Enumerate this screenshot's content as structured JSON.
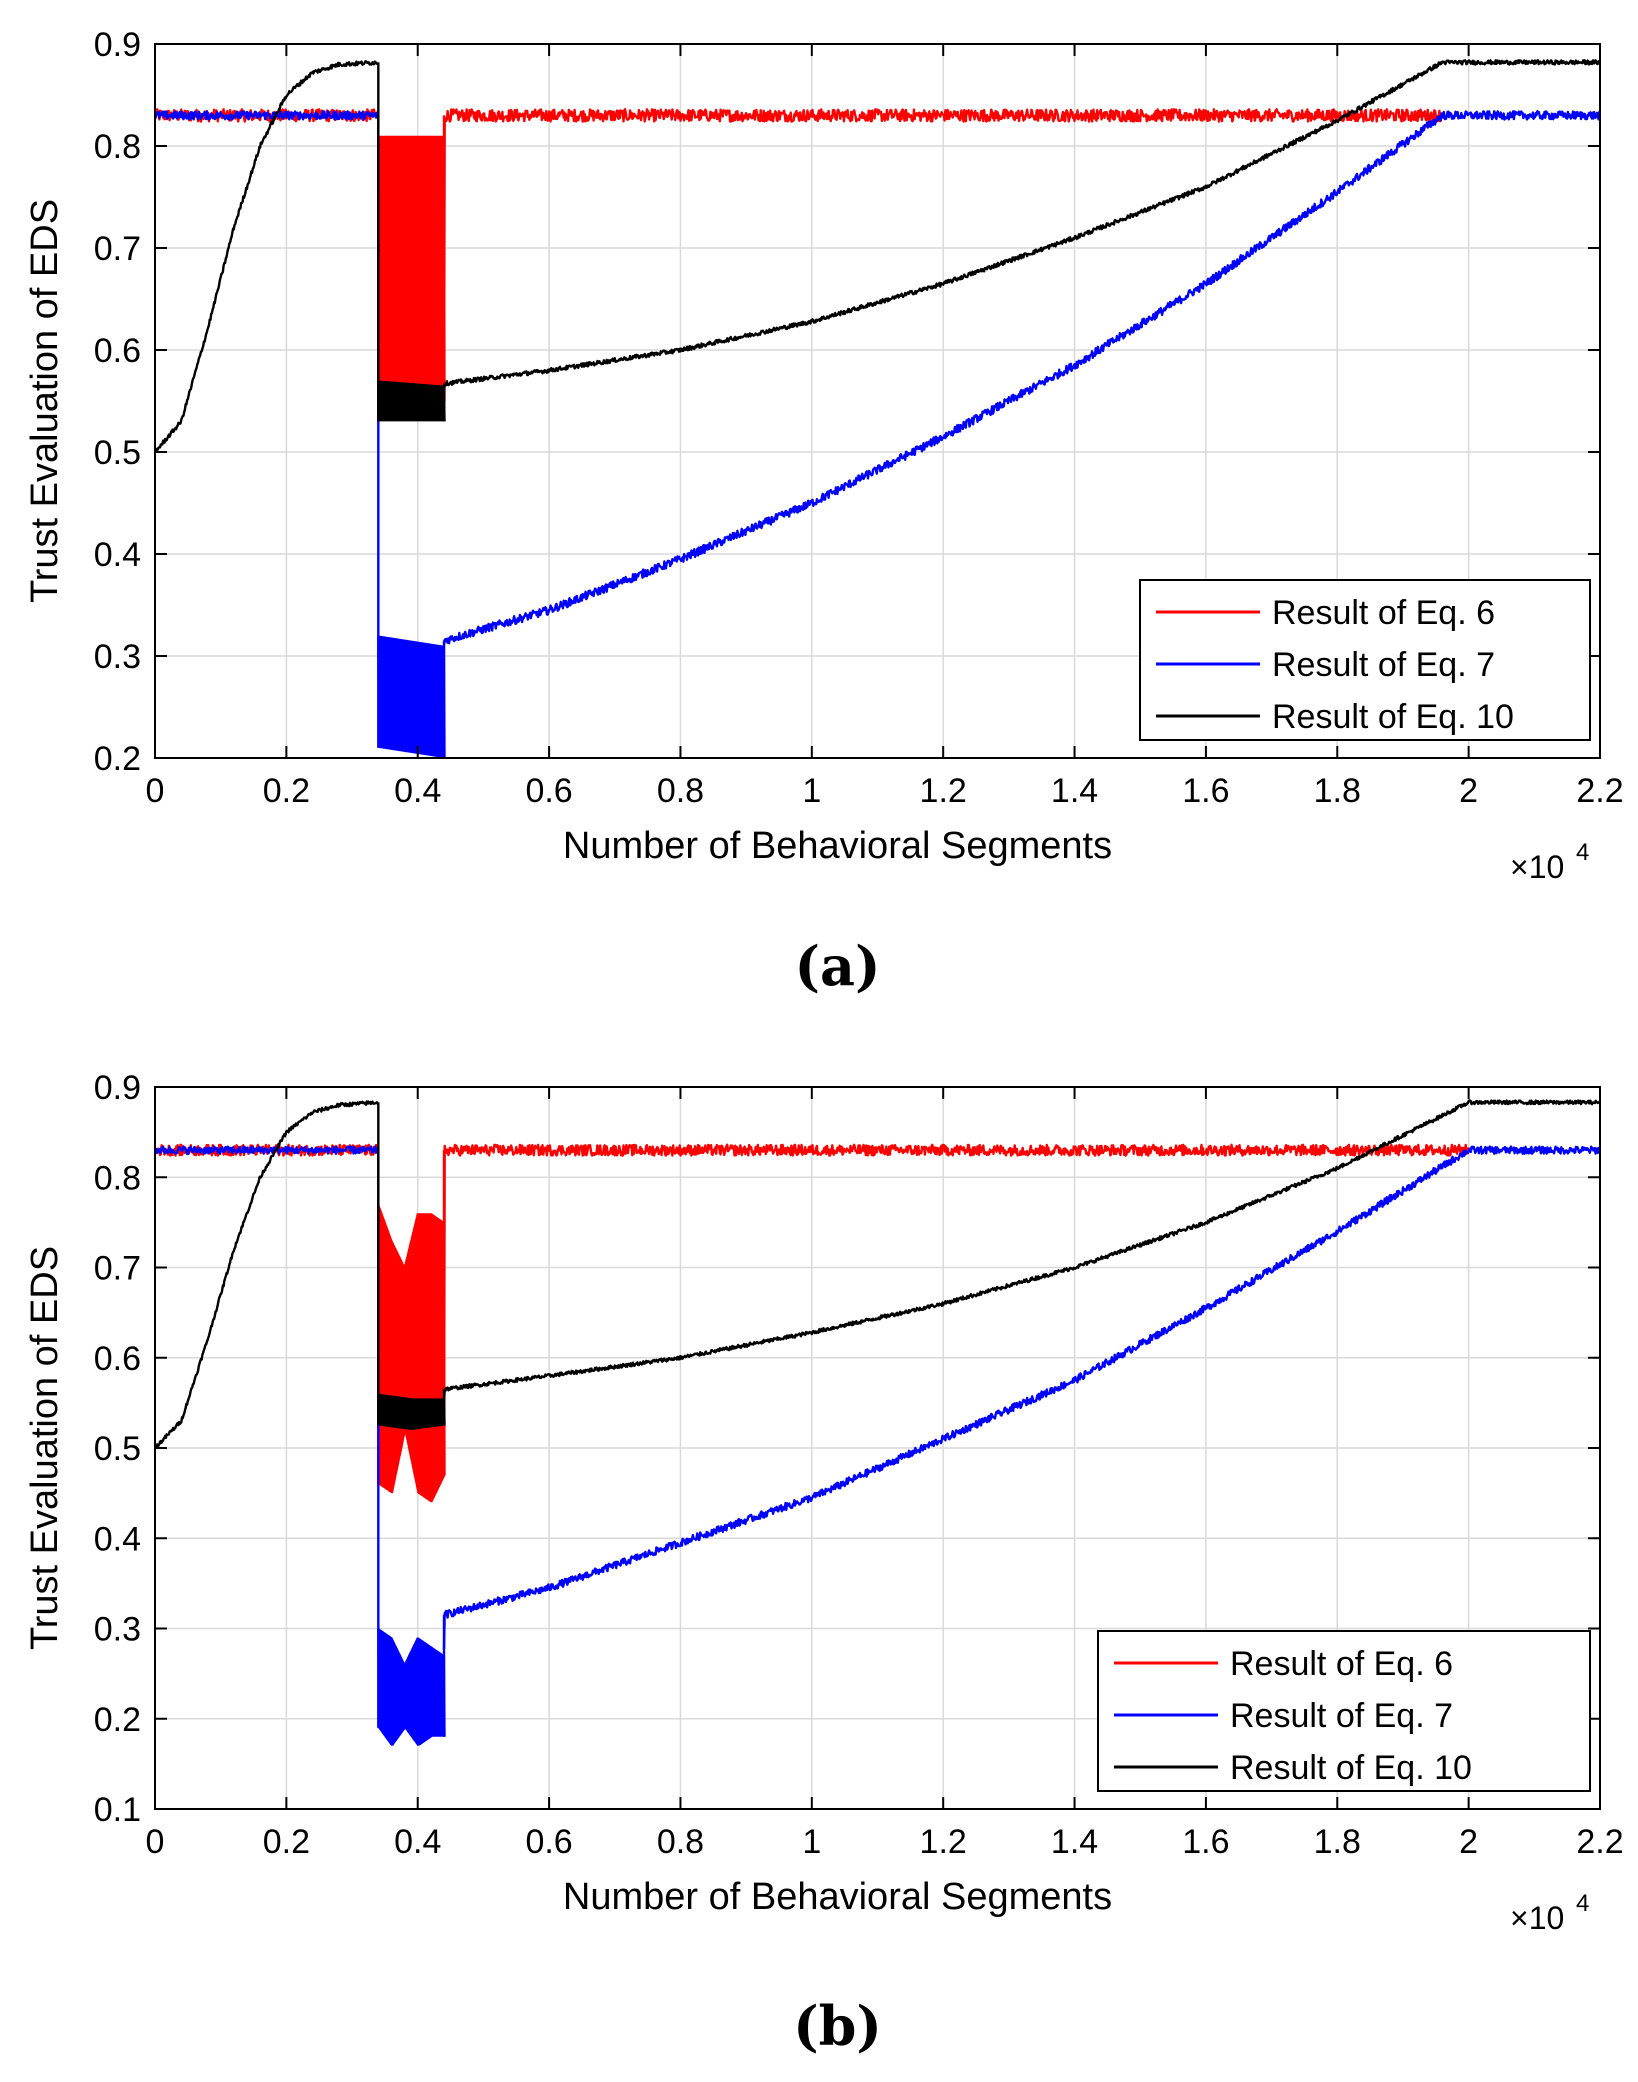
{
  "colors": {
    "eq6": "#ff0000",
    "eq7": "#0000ff",
    "eq10": "#000000",
    "grid": "#d9d9d9",
    "axis": "#000000"
  },
  "chart_data": [
    {
      "type": "line",
      "panel_label": "(a)",
      "xlabel": "Number of Behavioral Segments",
      "ylabel": "Trust Evaluation of EDS",
      "x_multiplier": "×10",
      "x_multiplier_exp": "4",
      "xlim": [
        0,
        2.2
      ],
      "ylim": [
        0.2,
        0.9
      ],
      "xticks": [
        "0",
        "0.2",
        "0.4",
        "0.6",
        "0.8",
        "1",
        "1.2",
        "1.4",
        "1.6",
        "1.8",
        "2",
        "2.2"
      ],
      "yticks": [
        "0.2",
        "0.3",
        "0.4",
        "0.5",
        "0.6",
        "0.7",
        "0.8",
        "0.9"
      ],
      "grid": true,
      "legend_position": "bottom-right",
      "series": [
        {
          "name": "Result of Eq. 6",
          "color": "#ff0000",
          "x": [
            0,
            0.34,
            0.34,
            0.44,
            0.44,
            1.96
          ],
          "y": [
            0.83,
            0.83,
            0.81,
            0.53,
            0.83,
            0.83
          ],
          "band": [
            [
              0.34,
              0.53,
              0.81
            ],
            [
              0.44,
              0.55,
              0.81
            ]
          ],
          "noise": 0.006
        },
        {
          "name": "Result of Eq. 7",
          "color": "#0000ff",
          "x": [
            0,
            0.34,
            0.34,
            0.35,
            0.44,
            0.44,
            0.6,
            0.8,
            1.0,
            1.2,
            1.4,
            1.6,
            1.8,
            1.96,
            2.2
          ],
          "y": [
            0.83,
            0.83,
            0.55,
            0.3,
            0.31,
            0.315,
            0.345,
            0.395,
            0.45,
            0.515,
            0.585,
            0.665,
            0.755,
            0.83,
            0.83
          ],
          "band": [
            [
              0.34,
              0.21,
              0.32
            ],
            [
              0.44,
              0.2,
              0.31
            ]
          ],
          "noise": 0.004
        },
        {
          "name": "Result of Eq. 10",
          "color": "#000000",
          "x": [
            0,
            0.04,
            0.08,
            0.12,
            0.16,
            0.2,
            0.24,
            0.28,
            0.34,
            0.34,
            0.44,
            0.44,
            0.6,
            0.8,
            1.0,
            1.2,
            1.4,
            1.6,
            1.8,
            1.96,
            2.2
          ],
          "y": [
            0.5,
            0.53,
            0.62,
            0.72,
            0.8,
            0.85,
            0.872,
            0.88,
            0.882,
            0.57,
            0.56,
            0.567,
            0.58,
            0.6,
            0.628,
            0.665,
            0.71,
            0.76,
            0.825,
            0.882,
            0.882
          ],
          "band": [
            [
              0.34,
              0.53,
              0.57
            ],
            [
              0.44,
              0.53,
              0.565
            ]
          ],
          "noise": 0.002
        }
      ]
    },
    {
      "type": "line",
      "panel_label": "(b)",
      "xlabel": "Number of Behavioral Segments",
      "ylabel": "Trust Evaluation of EDS",
      "x_multiplier": "×10",
      "x_multiplier_exp": "4",
      "xlim": [
        0,
        2.2
      ],
      "ylim": [
        0.1,
        0.9
      ],
      "xticks": [
        "0",
        "0.2",
        "0.4",
        "0.6",
        "0.8",
        "1",
        "1.2",
        "1.4",
        "1.6",
        "1.8",
        "2",
        "2.2"
      ],
      "yticks": [
        "0.1",
        "0.2",
        "0.3",
        "0.4",
        "0.5",
        "0.6",
        "0.7",
        "0.8",
        "0.9"
      ],
      "grid": true,
      "legend_position": "bottom-right",
      "series": [
        {
          "name": "Result of Eq. 6",
          "color": "#ff0000",
          "x": [
            0,
            0.34,
            0.34,
            0.44,
            0.44,
            2.0
          ],
          "y": [
            0.83,
            0.83,
            0.77,
            0.48,
            0.83,
            0.83
          ],
          "band": [
            [
              0.34,
              0.46,
              0.77
            ],
            [
              0.36,
              0.45,
              0.73
            ],
            [
              0.38,
              0.52,
              0.7
            ],
            [
              0.4,
              0.45,
              0.76
            ],
            [
              0.42,
              0.44,
              0.76
            ],
            [
              0.44,
              0.47,
              0.75
            ]
          ],
          "noise": 0.006
        },
        {
          "name": "Result of Eq. 7",
          "color": "#0000ff",
          "x": [
            0,
            0.34,
            0.34,
            0.35,
            0.44,
            0.44,
            0.6,
            0.8,
            1.0,
            1.2,
            1.4,
            1.6,
            1.8,
            2.0,
            2.2
          ],
          "y": [
            0.83,
            0.83,
            0.45,
            0.3,
            0.28,
            0.315,
            0.345,
            0.395,
            0.445,
            0.51,
            0.575,
            0.655,
            0.74,
            0.83,
            0.83
          ],
          "band": [
            [
              0.34,
              0.19,
              0.3
            ],
            [
              0.36,
              0.17,
              0.29
            ],
            [
              0.38,
              0.19,
              0.26
            ],
            [
              0.4,
              0.17,
              0.29
            ],
            [
              0.42,
              0.18,
              0.28
            ],
            [
              0.44,
              0.18,
              0.27
            ]
          ],
          "noise": 0.004
        },
        {
          "name": "Result of Eq. 10",
          "color": "#000000",
          "x": [
            0,
            0.04,
            0.08,
            0.12,
            0.16,
            0.2,
            0.24,
            0.28,
            0.34,
            0.34,
            0.44,
            0.44,
            0.6,
            0.8,
            1.0,
            1.2,
            1.4,
            1.6,
            1.8,
            2.0,
            2.2
          ],
          "y": [
            0.5,
            0.53,
            0.62,
            0.72,
            0.8,
            0.85,
            0.872,
            0.88,
            0.883,
            0.56,
            0.55,
            0.565,
            0.58,
            0.6,
            0.628,
            0.66,
            0.7,
            0.75,
            0.81,
            0.883,
            0.883
          ],
          "band": [
            [
              0.34,
              0.525,
              0.56
            ],
            [
              0.39,
              0.52,
              0.555
            ],
            [
              0.44,
              0.525,
              0.555
            ]
          ],
          "noise": 0.002
        }
      ]
    }
  ]
}
